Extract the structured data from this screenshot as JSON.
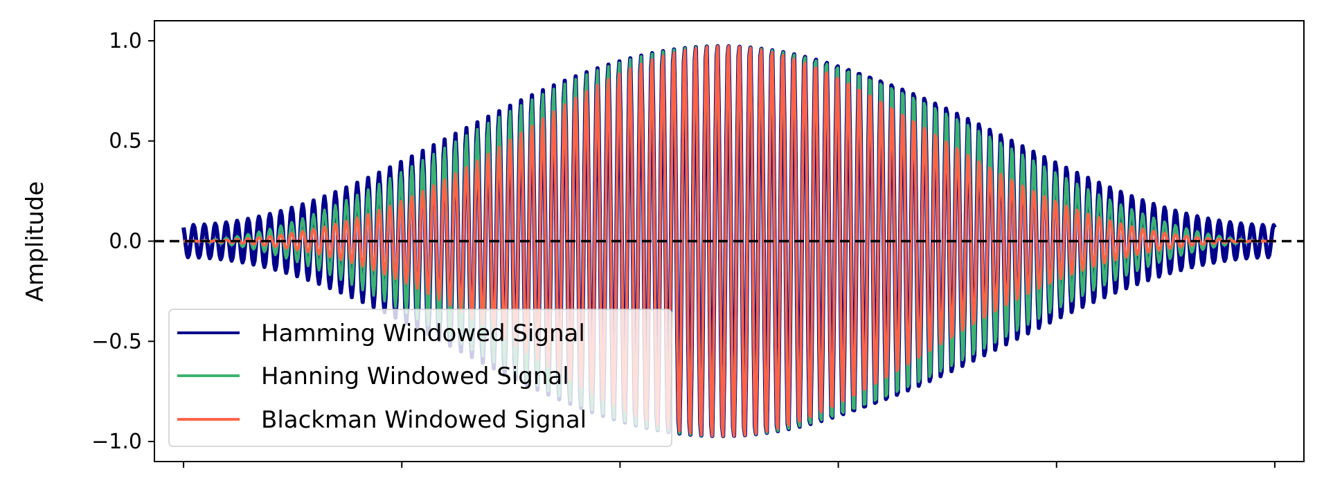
{
  "chart_data": {
    "type": "line",
    "ylabel": "Amplitude",
    "xlabel": "",
    "ylim": [
      -1.1,
      1.1
    ],
    "xlim": [
      -0.0267,
      1.0267
    ],
    "yticks": [
      -1.0,
      -0.5,
      0.0,
      0.5,
      1.0
    ],
    "ytick_labels": [
      "−1.0",
      "−0.5",
      "0.0",
      "0.5",
      "1.0"
    ],
    "xticks": [
      0,
      0.2,
      0.4,
      0.6,
      0.8,
      1.0
    ],
    "xtick_labels": [
      "",
      "",
      "",
      "",
      "",
      ""
    ],
    "grid": false,
    "legend_position": "lower-left",
    "reference_line": {
      "y": 0.0,
      "style": "dashed",
      "color": "#000000"
    },
    "signal": {
      "cycles": 100,
      "samples": 1000
    },
    "series": [
      {
        "name": "Hamming Windowed Signal",
        "color": "#00008B",
        "window": "hamming",
        "line_weight": "thick"
      },
      {
        "name": "Hanning Windowed Signal",
        "color": "#3CB371",
        "window": "hanning",
        "line_weight": "medium"
      },
      {
        "name": "Blackman Windowed Signal",
        "color": "#FF6347",
        "window": "blackman",
        "line_weight": "medium"
      }
    ]
  }
}
